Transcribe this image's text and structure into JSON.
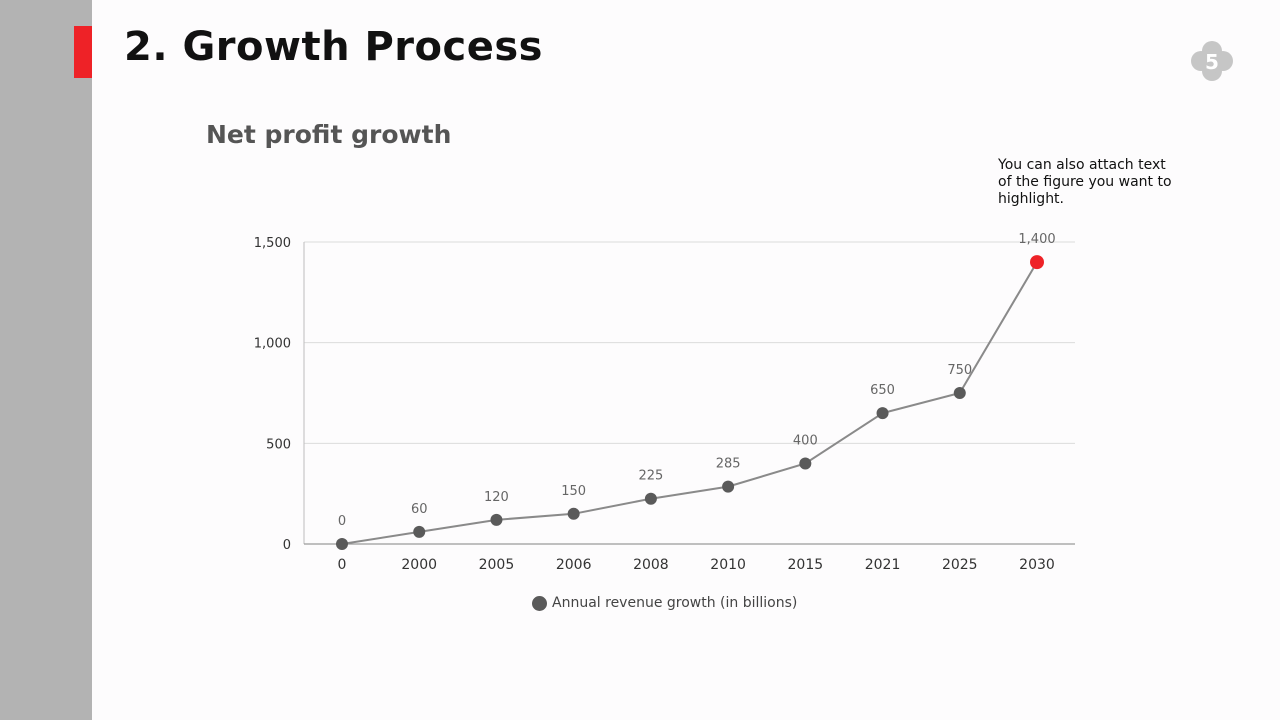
{
  "slide": {
    "title": "2. Growth Process",
    "page_number": "5",
    "note": "You can also attach text of the figure you want to highlight."
  },
  "colors": {
    "accent": "#ee2227",
    "sidebar": "#b3b3b3",
    "series": "#5a5a5a",
    "line": "#8a8a8a",
    "badge": "#c6c6c6"
  },
  "chart_data": {
    "type": "line",
    "title": "Net profit growth",
    "xlabel": "",
    "ylabel": "",
    "categories": [
      "0",
      "2000",
      "2005",
      "2006",
      "2008",
      "2010",
      "2015",
      "2021",
      "2025",
      "2030"
    ],
    "series": [
      {
        "name": "Annual revenue growth (in billions)",
        "values": [
          0,
          60,
          120,
          150,
          225,
          285,
          400,
          650,
          750,
          1400
        ],
        "data_labels": [
          "0",
          "60",
          "120",
          "150",
          "225",
          "285",
          "400",
          "650",
          "750",
          "1,400"
        ]
      }
    ],
    "ylim": [
      0,
      1500
    ],
    "y_ticks": [
      0,
      500,
      1000,
      1500
    ],
    "y_tick_labels": [
      "0",
      "500",
      "1,000",
      "1,500"
    ],
    "grid": true,
    "highlight_index": 9,
    "legend_position": "bottom"
  }
}
